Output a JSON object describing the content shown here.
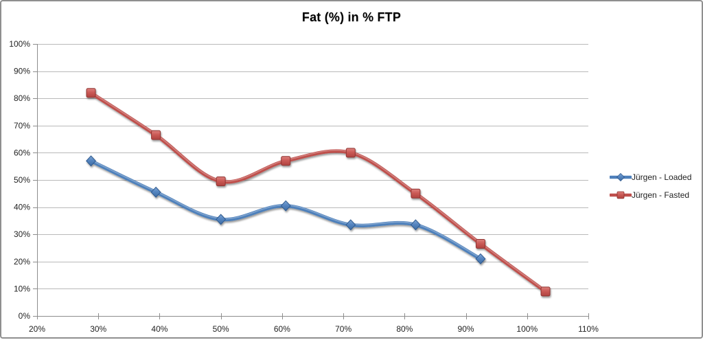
{
  "chart_data": {
    "type": "line",
    "title": "Fat (%) in % FTP",
    "xlabel": "",
    "ylabel": "",
    "smooth_lines": true,
    "grid": "horizontal",
    "legend_position": "right",
    "x_axis": {
      "min": 20,
      "max": 110,
      "step": 10,
      "tick_labels": [
        "20%",
        "30%",
        "40%",
        "50%",
        "60%",
        "70%",
        "80%",
        "90%",
        "100%",
        "110%"
      ]
    },
    "y_axis": {
      "min": 0,
      "max": 100,
      "step": 10,
      "tick_labels": [
        "0%",
        "10%",
        "20%",
        "30%",
        "40%",
        "50%",
        "60%",
        "70%",
        "80%",
        "90%",
        "100%"
      ]
    },
    "series": [
      {
        "name": "Jürgen - Loaded",
        "color": "#4e80bb",
        "marker": "diamond",
        "marker_fill": [
          "#83a9d6",
          "#5585c0",
          "#3f6da3"
        ],
        "marker_stroke": "#2f5a8f",
        "x": [
          28.8,
          39.4,
          50.0,
          60.6,
          71.2,
          81.8,
          92.4
        ],
        "values": [
          57.0,
          45.5,
          35.5,
          40.5,
          33.5,
          33.5,
          21.0
        ]
      },
      {
        "name": "Jürgen - Fasted",
        "color": "#bf4f4c",
        "marker": "square",
        "marker_fill": [
          "#dd807d",
          "#ca5a56",
          "#b04340"
        ],
        "marker_stroke": "#8f3532",
        "x": [
          28.8,
          39.4,
          50.0,
          60.6,
          71.2,
          81.8,
          92.4,
          103.0
        ],
        "values": [
          82.0,
          66.5,
          49.5,
          57.0,
          60.0,
          45.0,
          26.5,
          9.0
        ]
      }
    ],
    "style_colors": {
      "gridline": "#b9b9b9",
      "axis": "#8c8c8c",
      "tick_text": "#1f1f1f",
      "frame_border": "#8f8f8f"
    }
  }
}
